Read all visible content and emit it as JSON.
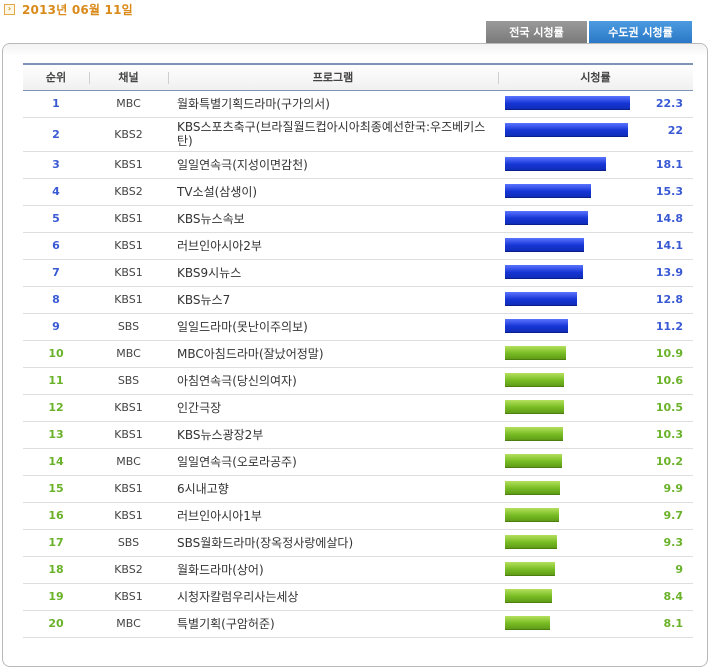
{
  "header": {
    "date": "2013년 06월 11일",
    "date_icon": "chevron-right-icon"
  },
  "tabs": [
    {
      "label": "전국 시청률",
      "active": false
    },
    {
      "label": "수도권 시청률",
      "active": true
    }
  ],
  "table": {
    "columns": [
      "순위",
      "채널",
      "프로그램",
      "시청률"
    ],
    "max_rating": 22.3,
    "rows": [
      {
        "rank": "1",
        "channel": "MBC",
        "program": "월화특별기획드라마(구가의서)",
        "rating": 22.3,
        "rating_text": "22.3",
        "color": "blue"
      },
      {
        "rank": "2",
        "channel": "KBS2",
        "program": "KBS스포츠축구(브라질월드컵아시아최종예선한국:우즈베키스탄)",
        "rating": 22,
        "rating_text": "22",
        "color": "blue"
      },
      {
        "rank": "3",
        "channel": "KBS1",
        "program": "일일연속극(지성이면감천)",
        "rating": 18.1,
        "rating_text": "18.1",
        "color": "blue"
      },
      {
        "rank": "4",
        "channel": "KBS2",
        "program": "TV소설(삼생이)",
        "rating": 15.3,
        "rating_text": "15.3",
        "color": "blue"
      },
      {
        "rank": "5",
        "channel": "KBS1",
        "program": "KBS뉴스속보",
        "rating": 14.8,
        "rating_text": "14.8",
        "color": "blue"
      },
      {
        "rank": "6",
        "channel": "KBS1",
        "program": "러브인아시아2부",
        "rating": 14.1,
        "rating_text": "14.1",
        "color": "blue"
      },
      {
        "rank": "7",
        "channel": "KBS1",
        "program": "KBS9시뉴스",
        "rating": 13.9,
        "rating_text": "13.9",
        "color": "blue"
      },
      {
        "rank": "8",
        "channel": "KBS1",
        "program": "KBS뉴스7",
        "rating": 12.8,
        "rating_text": "12.8",
        "color": "blue"
      },
      {
        "rank": "9",
        "channel": "SBS",
        "program": "일일드라마(못난이주의보)",
        "rating": 11.2,
        "rating_text": "11.2",
        "color": "blue"
      },
      {
        "rank": "10",
        "channel": "MBC",
        "program": "MBC아침드라마(잘났어정말)",
        "rating": 10.9,
        "rating_text": "10.9",
        "color": "green"
      },
      {
        "rank": "11",
        "channel": "SBS",
        "program": "아침연속극(당신의여자)",
        "rating": 10.6,
        "rating_text": "10.6",
        "color": "green"
      },
      {
        "rank": "12",
        "channel": "KBS1",
        "program": "인간극장",
        "rating": 10.5,
        "rating_text": "10.5",
        "color": "green"
      },
      {
        "rank": "13",
        "channel": "KBS1",
        "program": "KBS뉴스광장2부",
        "rating": 10.3,
        "rating_text": "10.3",
        "color": "green"
      },
      {
        "rank": "14",
        "channel": "MBC",
        "program": "일일연속극(오로라공주)",
        "rating": 10.2,
        "rating_text": "10.2",
        "color": "green"
      },
      {
        "rank": "15",
        "channel": "KBS1",
        "program": "6시내고향",
        "rating": 9.9,
        "rating_text": "9.9",
        "color": "green"
      },
      {
        "rank": "16",
        "channel": "KBS1",
        "program": "러브인아시아1부",
        "rating": 9.7,
        "rating_text": "9.7",
        "color": "green"
      },
      {
        "rank": "17",
        "channel": "SBS",
        "program": "SBS월화드라마(장옥정사랑에살다)",
        "rating": 9.3,
        "rating_text": "9.3",
        "color": "green"
      },
      {
        "rank": "18",
        "channel": "KBS2",
        "program": "월화드라마(상어)",
        "rating": 9,
        "rating_text": "9",
        "color": "green"
      },
      {
        "rank": "19",
        "channel": "KBS1",
        "program": "시청자칼럼우리사는세상",
        "rating": 8.4,
        "rating_text": "8.4",
        "color": "green"
      },
      {
        "rank": "20",
        "channel": "MBC",
        "program": "특별기획(구암허준)",
        "rating": 8.1,
        "rating_text": "8.1",
        "color": "green"
      }
    ]
  }
}
